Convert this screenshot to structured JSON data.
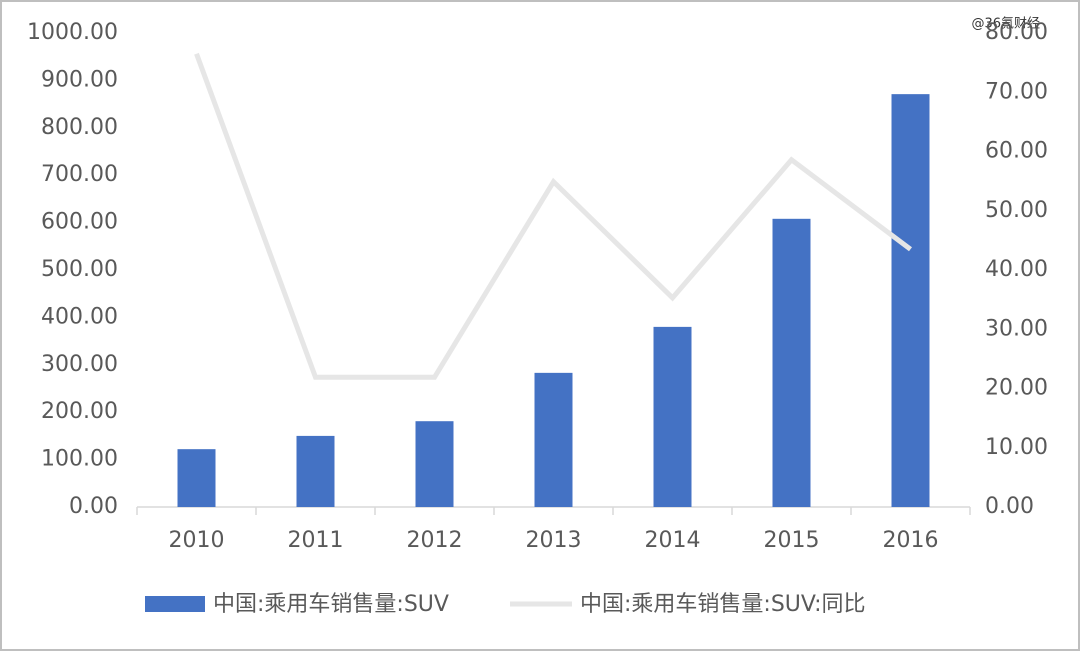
{
  "chart_data": {
    "type": "bar-line",
    "watermark": "@36氪财经",
    "categories": [
      "2010",
      "2011",
      "2012",
      "2013",
      "2014",
      "2015",
      "2016"
    ],
    "series": [
      {
        "name": "中国:乘用车销售量:SUV",
        "type": "bar",
        "color": "#4472c4",
        "values": [
          122,
          150,
          181,
          283,
          380,
          608,
          871
        ]
      },
      {
        "name": "中国:乘用车销售量:SUV:同比",
        "type": "line",
        "axis": "y2",
        "color": "#e6e6e6",
        "values": [
          76.5,
          21.9,
          21.9,
          54.9,
          35.3,
          58.6,
          43.5
        ]
      }
    ],
    "ylim": [
      0,
      1000
    ],
    "yticks": [
      {
        "value": 0,
        "label": "0.00"
      },
      {
        "value": 100,
        "label": "100.00"
      },
      {
        "value": 200,
        "label": "200.00"
      },
      {
        "value": 300,
        "label": "300.00"
      },
      {
        "value": 400,
        "label": "400.00"
      },
      {
        "value": 500,
        "label": "500.00"
      },
      {
        "value": 600,
        "label": "600.00"
      },
      {
        "value": 700,
        "label": "700.00"
      },
      {
        "value": 800,
        "label": "800.00"
      },
      {
        "value": 900,
        "label": "900.00"
      },
      {
        "value": 1000,
        "label": "1000.00"
      }
    ],
    "y2lim": [
      0,
      80
    ],
    "y2ticks": [
      {
        "value": 0,
        "label": "0.00"
      },
      {
        "value": 10,
        "label": "10.00"
      },
      {
        "value": 20,
        "label": "20.00"
      },
      {
        "value": 30,
        "label": "30.00"
      },
      {
        "value": 40,
        "label": "40.00"
      },
      {
        "value": 50,
        "label": "50.00"
      },
      {
        "value": 60,
        "label": "60.00"
      },
      {
        "value": 70,
        "label": "70.00"
      },
      {
        "value": 80,
        "label": "80.00"
      }
    ],
    "legend": "bottom"
  }
}
